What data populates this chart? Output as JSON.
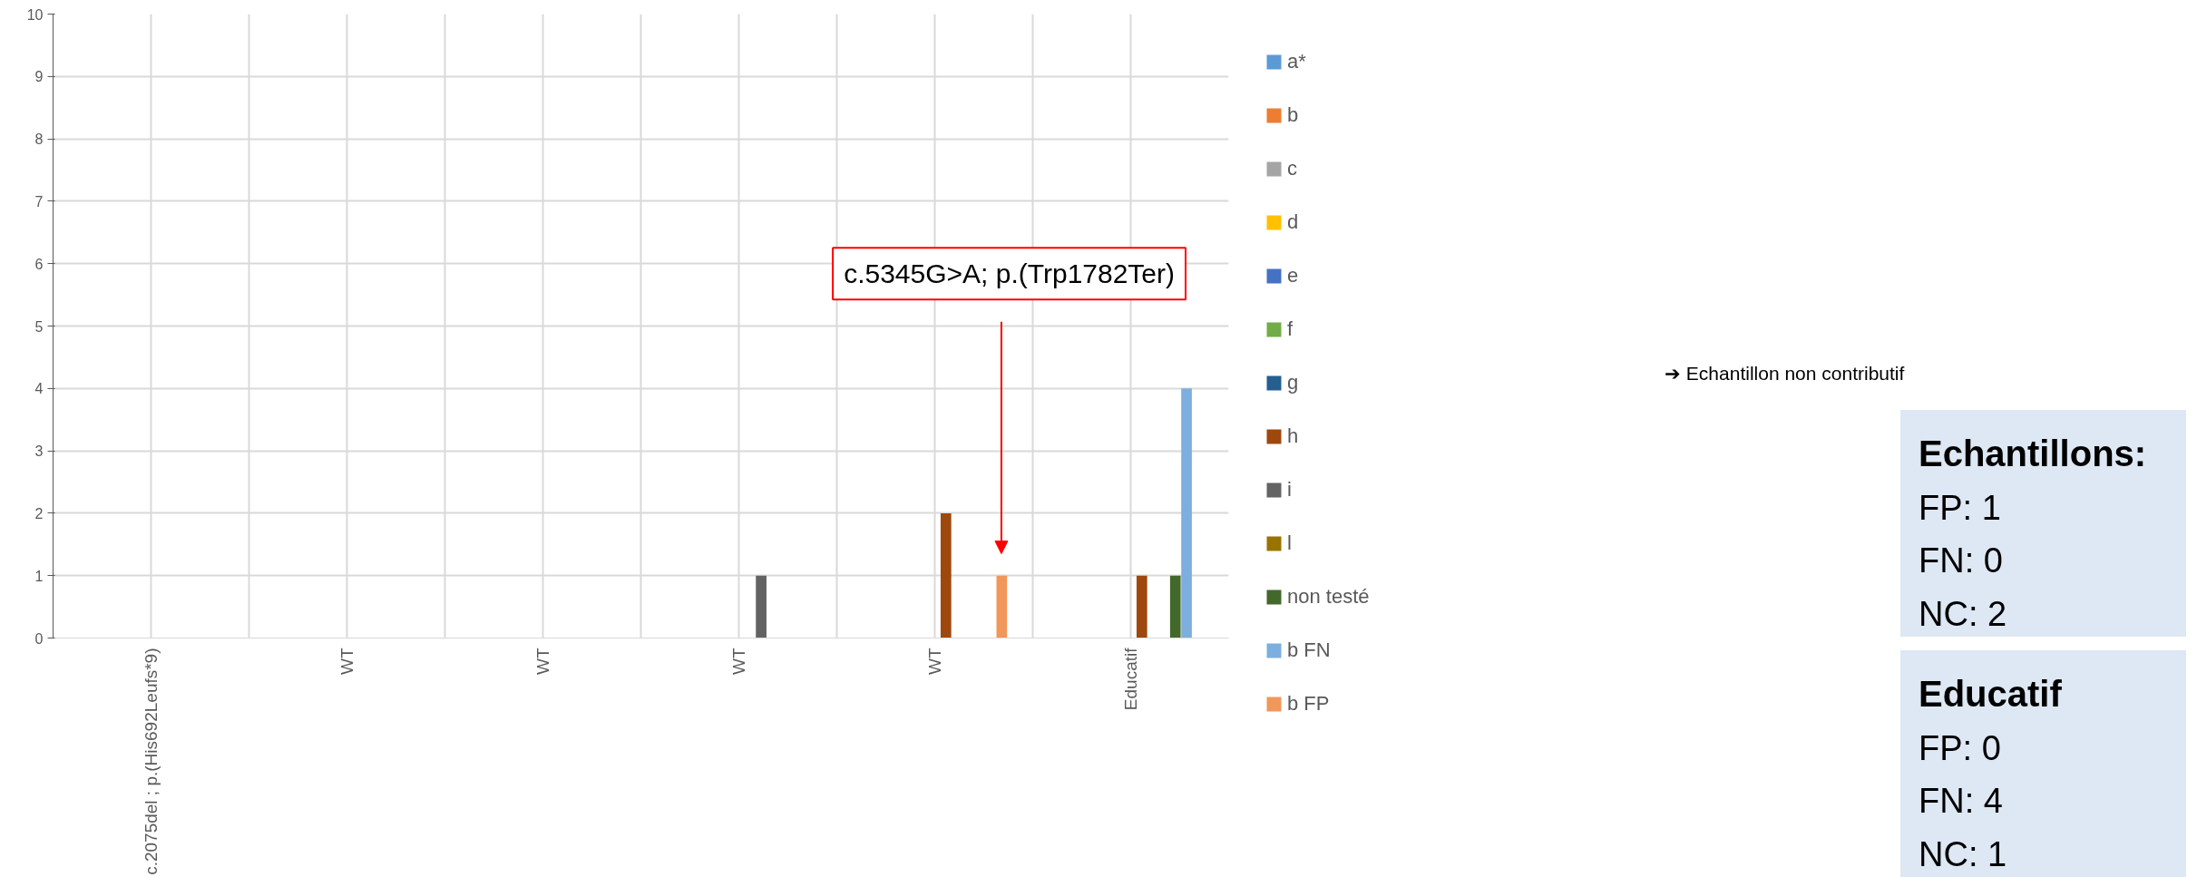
{
  "chart_data": {
    "type": "bar",
    "categories": [
      "c.2075del ; p.(His692Leufs*9)",
      "WT",
      "WT",
      "WT",
      "WT",
      "Educatif"
    ],
    "series": [
      {
        "name": "a*",
        "color": "#5b9bd5",
        "values": [
          0,
          0,
          0,
          0,
          0,
          0
        ]
      },
      {
        "name": "b",
        "color": "#ed7d31",
        "values": [
          0,
          0,
          0,
          0,
          0,
          0
        ]
      },
      {
        "name": "c",
        "color": "#a5a5a5",
        "values": [
          0,
          0,
          0,
          0,
          0,
          0
        ]
      },
      {
        "name": "d",
        "color": "#ffc000",
        "values": [
          0,
          0,
          0,
          0,
          0,
          0
        ]
      },
      {
        "name": "e",
        "color": "#4472c4",
        "values": [
          0,
          0,
          0,
          0,
          0,
          0
        ]
      },
      {
        "name": "f",
        "color": "#70ad47",
        "values": [
          0,
          0,
          0,
          0,
          0,
          0
        ]
      },
      {
        "name": "g",
        "color": "#255e91",
        "values": [
          0,
          0,
          0,
          0,
          0,
          0
        ]
      },
      {
        "name": "h",
        "color": "#9e480e",
        "values": [
          0,
          0,
          0,
          0,
          2,
          1
        ]
      },
      {
        "name": "i",
        "color": "#636363",
        "values": [
          0,
          0,
          0,
          1,
          0,
          0
        ]
      },
      {
        "name": "l",
        "color": "#997300",
        "values": [
          0,
          0,
          0,
          0,
          0,
          0
        ]
      },
      {
        "name": "non testé",
        "color": "#43682b",
        "values": [
          0,
          0,
          0,
          0,
          0,
          1
        ]
      },
      {
        "name": "b FN",
        "color": "#7cafdd",
        "values": [
          0,
          0,
          0,
          0,
          0,
          4
        ]
      },
      {
        "name": "b FP",
        "color": "#f1975a",
        "values": [
          0,
          0,
          0,
          0,
          1,
          0
        ]
      }
    ],
    "ylim": [
      0,
      10
    ],
    "yticks": [
      0,
      1,
      2,
      3,
      4,
      5,
      6,
      7,
      8,
      9,
      10
    ],
    "grid": true,
    "legend": "right",
    "annotations": [
      "c.5345G>A; p.(Trp1782Ter)",
      "➔ Echantillon non contributif",
      "Echantillons:\nFP: 1\nFN: 0\nNC: 2",
      "Educatif\nFP: 0\nFN: 4\nNC: 1"
    ]
  }
}
